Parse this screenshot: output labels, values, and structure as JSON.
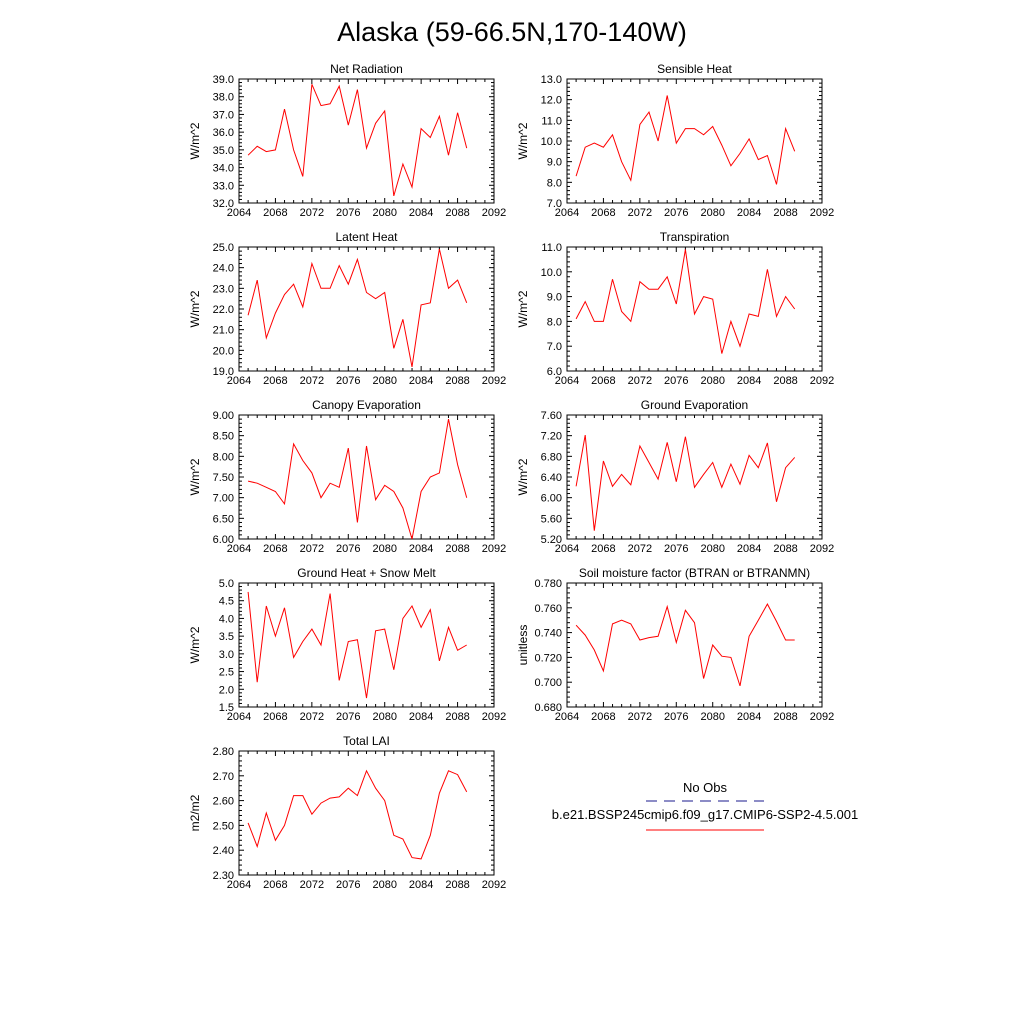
{
  "figure": {
    "title": "Alaska (59-66.5N,170-140W)"
  },
  "legend": {
    "entries": [
      {
        "label": "No Obs",
        "color": "#1a1a8c",
        "style": "dashed"
      },
      {
        "label": "b.e21.BSSP245cmip6.f09_g17.CMIP6-SSP2-4.5.001",
        "color": "#ff0000",
        "style": "solid"
      }
    ]
  },
  "chart_data": [
    {
      "type": "line",
      "title": "Net Radiation",
      "ylabel": "W/m^2",
      "xlim": [
        2064,
        2092
      ],
      "ylim": [
        32.0,
        39.0
      ],
      "xticks": [
        2064,
        2068,
        2072,
        2076,
        2080,
        2084,
        2088,
        2092
      ],
      "yticks": [
        "32.0",
        "33.0",
        "34.0",
        "35.0",
        "36.0",
        "37.0",
        "38.0",
        "39.0"
      ],
      "x": [
        2065,
        2066,
        2067,
        2068,
        2069,
        2070,
        2071,
        2072,
        2073,
        2074,
        2075,
        2076,
        2077,
        2078,
        2079,
        2080,
        2081,
        2082,
        2083,
        2084,
        2085,
        2086,
        2087,
        2088,
        2089
      ],
      "series": [
        {
          "color": "#ff0000",
          "values": [
            34.7,
            35.2,
            34.9,
            35.0,
            37.3,
            35.0,
            33.5,
            38.7,
            37.5,
            37.6,
            38.6,
            36.4,
            38.4,
            35.1,
            36.5,
            37.2,
            32.4,
            34.2,
            32.9,
            36.2,
            35.7,
            36.9,
            34.7,
            37.1,
            35.1
          ]
        }
      ]
    },
    {
      "type": "line",
      "title": "Sensible Heat",
      "ylabel": "W/m^2",
      "xlim": [
        2064,
        2092
      ],
      "ylim": [
        7.0,
        13.0
      ],
      "xticks": [
        2064,
        2068,
        2072,
        2076,
        2080,
        2084,
        2088,
        2092
      ],
      "yticks": [
        "7.0",
        "8.0",
        "9.0",
        "10.0",
        "11.0",
        "12.0",
        "13.0"
      ],
      "x": [
        2065,
        2066,
        2067,
        2068,
        2069,
        2070,
        2071,
        2072,
        2073,
        2074,
        2075,
        2076,
        2077,
        2078,
        2079,
        2080,
        2081,
        2082,
        2083,
        2084,
        2085,
        2086,
        2087,
        2088,
        2089
      ],
      "series": [
        {
          "color": "#ff0000",
          "values": [
            8.3,
            9.7,
            9.9,
            9.7,
            10.3,
            9.0,
            8.1,
            10.8,
            11.4,
            10.0,
            12.2,
            9.9,
            10.6,
            10.6,
            10.3,
            10.7,
            9.8,
            8.8,
            9.4,
            10.1,
            9.1,
            9.3,
            7.9,
            10.6,
            9.5
          ]
        }
      ]
    },
    {
      "type": "line",
      "title": "Latent Heat",
      "ylabel": "W/m^2",
      "xlim": [
        2064,
        2092
      ],
      "ylim": [
        19.0,
        25.0
      ],
      "xticks": [
        2064,
        2068,
        2072,
        2076,
        2080,
        2084,
        2088,
        2092
      ],
      "yticks": [
        "19.0",
        "20.0",
        "21.0",
        "22.0",
        "23.0",
        "24.0",
        "25.0"
      ],
      "x": [
        2065,
        2066,
        2067,
        2068,
        2069,
        2070,
        2071,
        2072,
        2073,
        2074,
        2075,
        2076,
        2077,
        2078,
        2079,
        2080,
        2081,
        2082,
        2083,
        2084,
        2085,
        2086,
        2087,
        2088,
        2089
      ],
      "series": [
        {
          "color": "#ff0000",
          "values": [
            21.7,
            23.4,
            20.6,
            21.8,
            22.7,
            23.2,
            22.1,
            24.2,
            23.0,
            23.0,
            24.1,
            23.2,
            24.4,
            22.8,
            22.5,
            22.8,
            20.1,
            21.5,
            19.2,
            22.2,
            22.3,
            24.9,
            23.0,
            23.4,
            22.3
          ]
        }
      ]
    },
    {
      "type": "line",
      "title": "Transpiration",
      "ylabel": "W/m^2",
      "xlim": [
        2064,
        2092
      ],
      "ylim": [
        6.0,
        11.0
      ],
      "xticks": [
        2064,
        2068,
        2072,
        2076,
        2080,
        2084,
        2088,
        2092
      ],
      "yticks": [
        "6.0",
        "7.0",
        "8.0",
        "9.0",
        "10.0",
        "11.0"
      ],
      "x": [
        2065,
        2066,
        2067,
        2068,
        2069,
        2070,
        2071,
        2072,
        2073,
        2074,
        2075,
        2076,
        2077,
        2078,
        2079,
        2080,
        2081,
        2082,
        2083,
        2084,
        2085,
        2086,
        2087,
        2088,
        2089
      ],
      "series": [
        {
          "color": "#ff0000",
          "values": [
            8.1,
            8.8,
            8.0,
            8.0,
            9.7,
            8.4,
            8.0,
            9.6,
            9.3,
            9.3,
            9.8,
            8.7,
            10.9,
            8.3,
            9.0,
            8.9,
            6.7,
            8.0,
            7.0,
            8.3,
            8.2,
            10.1,
            8.2,
            9.0,
            8.5
          ]
        }
      ]
    },
    {
      "type": "line",
      "title": "Canopy Evaporation",
      "ylabel": "W/m^2",
      "xlim": [
        2064,
        2092
      ],
      "ylim": [
        6.0,
        9.0
      ],
      "xticks": [
        2064,
        2068,
        2072,
        2076,
        2080,
        2084,
        2088,
        2092
      ],
      "yticks": [
        "6.00",
        "6.50",
        "7.00",
        "7.50",
        "8.00",
        "8.50",
        "9.00"
      ],
      "x": [
        2065,
        2066,
        2067,
        2068,
        2069,
        2070,
        2071,
        2072,
        2073,
        2074,
        2075,
        2076,
        2077,
        2078,
        2079,
        2080,
        2081,
        2082,
        2083,
        2084,
        2085,
        2086,
        2087,
        2088,
        2089
      ],
      "series": [
        {
          "color": "#ff0000",
          "values": [
            7.4,
            7.35,
            7.25,
            7.15,
            6.85,
            8.3,
            7.9,
            7.6,
            7.0,
            7.35,
            7.25,
            8.2,
            6.4,
            8.25,
            6.95,
            7.3,
            7.15,
            6.75,
            6.0,
            7.15,
            7.5,
            7.6,
            8.9,
            7.8,
            7.0
          ]
        }
      ]
    },
    {
      "type": "line",
      "title": "Ground Evaporation",
      "ylabel": "W/m^2",
      "xlim": [
        2064,
        2092
      ],
      "ylim": [
        5.2,
        7.6
      ],
      "xticks": [
        2064,
        2068,
        2072,
        2076,
        2080,
        2084,
        2088,
        2092
      ],
      "yticks": [
        "5.20",
        "5.60",
        "6.00",
        "6.40",
        "6.80",
        "7.20",
        "7.60"
      ],
      "x": [
        2065,
        2066,
        2067,
        2068,
        2069,
        2070,
        2071,
        2072,
        2073,
        2074,
        2075,
        2076,
        2077,
        2078,
        2079,
        2080,
        2081,
        2082,
        2083,
        2084,
        2085,
        2086,
        2087,
        2088,
        2089
      ],
      "series": [
        {
          "color": "#ff0000",
          "values": [
            6.22,
            7.21,
            5.36,
            6.71,
            6.22,
            6.45,
            6.25,
            7.0,
            6.68,
            6.36,
            7.07,
            6.31,
            7.18,
            6.2,
            6.45,
            6.68,
            6.2,
            6.65,
            6.26,
            6.82,
            6.58,
            7.06,
            5.92,
            6.58,
            6.78
          ]
        }
      ]
    },
    {
      "type": "line",
      "title": "Ground Heat + Snow Melt",
      "ylabel": "W/m^2",
      "xlim": [
        2064,
        2092
      ],
      "ylim": [
        1.5,
        5.0
      ],
      "xticks": [
        2064,
        2068,
        2072,
        2076,
        2080,
        2084,
        2088,
        2092
      ],
      "yticks": [
        "1.5",
        "2.0",
        "2.5",
        "3.0",
        "3.5",
        "4.0",
        "4.5",
        "5.0"
      ],
      "x": [
        2065,
        2066,
        2067,
        2068,
        2069,
        2070,
        2071,
        2072,
        2073,
        2074,
        2075,
        2076,
        2077,
        2078,
        2079,
        2080,
        2081,
        2082,
        2083,
        2084,
        2085,
        2086,
        2087,
        2088,
        2089
      ],
      "series": [
        {
          "color": "#ff0000",
          "values": [
            4.75,
            2.2,
            4.35,
            3.5,
            4.3,
            2.9,
            3.35,
            3.7,
            3.25,
            4.7,
            2.25,
            3.35,
            3.4,
            1.75,
            3.65,
            3.7,
            2.55,
            4.0,
            4.35,
            3.75,
            4.25,
            2.8,
            3.75,
            3.1,
            3.25
          ]
        }
      ]
    },
    {
      "type": "line",
      "title": "Soil moisture factor (BTRAN or BTRANMN)",
      "ylabel": "unitless",
      "xlim": [
        2064,
        2092
      ],
      "ylim": [
        0.68,
        0.78
      ],
      "xticks": [
        2064,
        2068,
        2072,
        2076,
        2080,
        2084,
        2088,
        2092
      ],
      "yticks": [
        "0.680",
        "0.700",
        "0.720",
        "0.740",
        "0.760",
        "0.780"
      ],
      "x": [
        2065,
        2066,
        2067,
        2068,
        2069,
        2070,
        2071,
        2072,
        2073,
        2074,
        2075,
        2076,
        2077,
        2078,
        2079,
        2080,
        2081,
        2082,
        2083,
        2084,
        2085,
        2086,
        2087,
        2088,
        2089
      ],
      "series": [
        {
          "color": "#ff0000",
          "values": [
            0.746,
            0.738,
            0.726,
            0.709,
            0.747,
            0.75,
            0.747,
            0.734,
            0.736,
            0.737,
            0.761,
            0.732,
            0.758,
            0.748,
            0.703,
            0.73,
            0.721,
            0.72,
            0.697,
            0.737,
            0.75,
            0.763,
            0.749,
            0.734,
            0.734
          ]
        }
      ]
    },
    {
      "type": "line",
      "title": "Total LAI",
      "ylabel": "m2/m2",
      "xlim": [
        2064,
        2092
      ],
      "ylim": [
        2.3,
        2.8
      ],
      "xticks": [
        2064,
        2068,
        2072,
        2076,
        2080,
        2084,
        2088,
        2092
      ],
      "yticks": [
        "2.30",
        "2.40",
        "2.50",
        "2.60",
        "2.70",
        "2.80"
      ],
      "x": [
        2065,
        2066,
        2067,
        2068,
        2069,
        2070,
        2071,
        2072,
        2073,
        2074,
        2075,
        2076,
        2077,
        2078,
        2079,
        2080,
        2081,
        2082,
        2083,
        2084,
        2085,
        2086,
        2087,
        2088,
        2089
      ],
      "series": [
        {
          "color": "#ff0000",
          "values": [
            2.51,
            2.415,
            2.55,
            2.44,
            2.5,
            2.62,
            2.62,
            2.545,
            2.59,
            2.61,
            2.615,
            2.65,
            2.62,
            2.72,
            2.65,
            2.6,
            2.46,
            2.445,
            2.37,
            2.365,
            2.46,
            2.63,
            2.72,
            2.705,
            2.635
          ]
        }
      ]
    }
  ]
}
